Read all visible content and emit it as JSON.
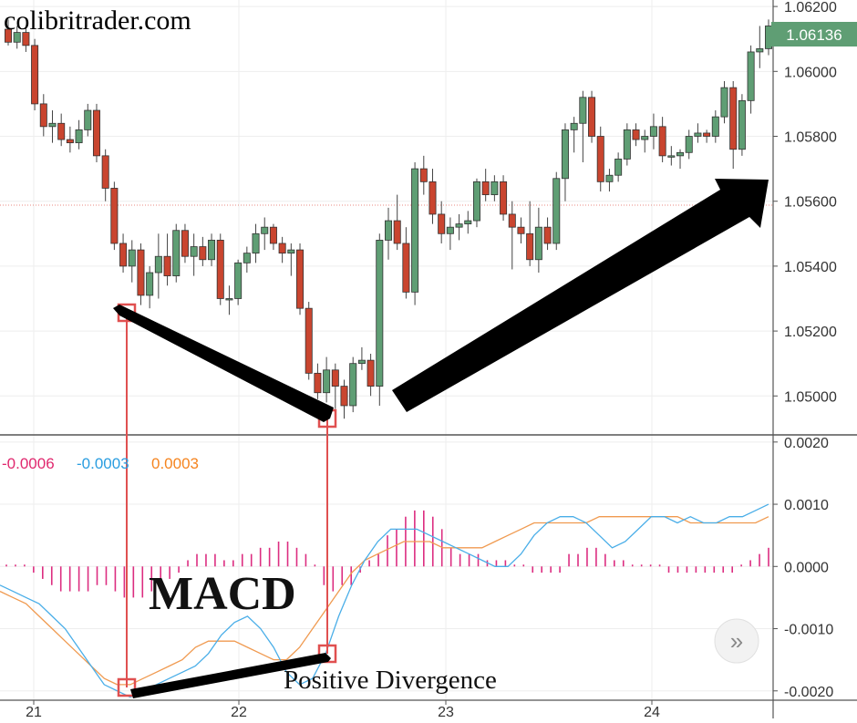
{
  "watermark": "colibritrader.com",
  "price_label": "1.06136",
  "macd_title": "MACD",
  "divergence_text": "Positive Divergence",
  "legend": [
    {
      "text": "-0.0006",
      "color": "#e0286e"
    },
    {
      "text": "-0.0003",
      "color": "#2a9de0"
    },
    {
      "text": "0.0003",
      "color": "#f5841f"
    }
  ],
  "scroll_button_label": "»",
  "colors": {
    "up": "#5f9e74",
    "down": "#c9452f",
    "hist": "#dc2d80",
    "macd_line": "#4aaee8",
    "signal_line": "#f09a50",
    "marker": "#e05050",
    "arrow": "#000000",
    "price_badge": "#5f9e74"
  },
  "chart_data": [
    {
      "type": "candlestick",
      "title": "",
      "x_ticks": [
        "21",
        "22",
        "23",
        "24"
      ],
      "y_ticks": [
        "1.05000",
        "1.05200",
        "1.05400",
        "1.05600",
        "1.05800",
        "1.06000",
        "1.06200"
      ],
      "ylim": [
        1.0488,
        1.0622
      ],
      "last_price": 1.06136,
      "ohlc": [
        [
          1.0613,
          1.0616,
          1.0608,
          1.0609
        ],
        [
          1.0609,
          1.0614,
          1.0607,
          1.0612
        ],
        [
          1.0612,
          1.0614,
          1.0606,
          1.0608
        ],
        [
          1.0608,
          1.061,
          1.0588,
          1.059
        ],
        [
          1.059,
          1.0593,
          1.058,
          1.0583
        ],
        [
          1.0583,
          1.0588,
          1.0578,
          1.0584
        ],
        [
          1.0584,
          1.0587,
          1.0577,
          1.0579
        ],
        [
          1.0579,
          1.0583,
          1.0575,
          1.0578
        ],
        [
          1.0578,
          1.0585,
          1.0576,
          1.0582
        ],
        [
          1.0582,
          1.059,
          1.058,
          1.0588
        ],
        [
          1.0588,
          1.059,
          1.0572,
          1.0574
        ],
        [
          1.0574,
          1.0576,
          1.056,
          1.0564
        ],
        [
          1.0564,
          1.0566,
          1.0545,
          1.0547
        ],
        [
          1.0547,
          1.055,
          1.0538,
          1.054
        ],
        [
          1.054,
          1.0548,
          1.0535,
          1.0545
        ],
        [
          1.0545,
          1.0547,
          1.0528,
          1.0531
        ],
        [
          1.0531,
          1.054,
          1.0527,
          1.0538
        ],
        [
          1.0538,
          1.055,
          1.053,
          1.0543
        ],
        [
          1.0543,
          1.055,
          1.0534,
          1.0537
        ],
        [
          1.0537,
          1.0553,
          1.0535,
          1.0551
        ],
        [
          1.0551,
          1.0553,
          1.0541,
          1.0543
        ],
        [
          1.0543,
          1.055,
          1.0537,
          1.0546
        ],
        [
          1.0546,
          1.0549,
          1.054,
          1.0542
        ],
        [
          1.0542,
          1.055,
          1.054,
          1.0548
        ],
        [
          1.0548,
          1.055,
          1.0528,
          1.053
        ],
        [
          1.053,
          1.0534,
          1.0525,
          1.053
        ],
        [
          1.053,
          1.0542,
          1.0528,
          1.0541
        ],
        [
          1.0541,
          1.0546,
          1.0538,
          1.0544
        ],
        [
          1.0544,
          1.0553,
          1.0541,
          1.055
        ],
        [
          1.055,
          1.0555,
          1.0545,
          1.0552
        ],
        [
          1.0552,
          1.0553,
          1.0545,
          1.0547
        ],
        [
          1.0547,
          1.0549,
          1.0541,
          1.0544
        ],
        [
          1.0544,
          1.0547,
          1.0537,
          1.0545
        ],
        [
          1.0545,
          1.0547,
          1.0525,
          1.0527
        ],
        [
          1.0527,
          1.0529,
          1.0505,
          1.0507
        ],
        [
          1.0507,
          1.051,
          1.0499,
          1.0501
        ],
        [
          1.0501,
          1.0512,
          1.0498,
          1.0508
        ],
        [
          1.0508,
          1.051,
          1.0496,
          1.0503
        ],
        [
          1.0503,
          1.0505,
          1.0493,
          1.0497
        ],
        [
          1.0497,
          1.0512,
          1.0495,
          1.051
        ],
        [
          1.051,
          1.0515,
          1.0508,
          1.0511
        ],
        [
          1.0511,
          1.0513,
          1.05,
          1.0503
        ],
        [
          1.0503,
          1.055,
          1.0497,
          1.0548
        ],
        [
          1.0548,
          1.0558,
          1.0542,
          1.0554
        ],
        [
          1.0554,
          1.0562,
          1.0545,
          1.0547
        ],
        [
          1.0547,
          1.0552,
          1.053,
          1.0532
        ],
        [
          1.0532,
          1.0572,
          1.0528,
          1.057
        ],
        [
          1.057,
          1.0574,
          1.0562,
          1.0566
        ],
        [
          1.0566,
          1.057,
          1.0553,
          1.0556
        ],
        [
          1.0556,
          1.056,
          1.0547,
          1.055
        ],
        [
          1.055,
          1.0555,
          1.0545,
          1.0552
        ],
        [
          1.0552,
          1.0556,
          1.0548,
          1.0553
        ],
        [
          1.0553,
          1.0557,
          1.055,
          1.0554
        ],
        [
          1.0554,
          1.0567,
          1.0552,
          1.0566
        ],
        [
          1.0566,
          1.057,
          1.056,
          1.0562
        ],
        [
          1.0562,
          1.0568,
          1.056,
          1.0566
        ],
        [
          1.0566,
          1.0568,
          1.0554,
          1.0556
        ],
        [
          1.0556,
          1.056,
          1.0539,
          1.0552
        ],
        [
          1.0552,
          1.0555,
          1.0547,
          1.055
        ],
        [
          1.055,
          1.056,
          1.054,
          1.0542
        ],
        [
          1.0542,
          1.0558,
          1.0538,
          1.0552
        ],
        [
          1.0552,
          1.0555,
          1.0545,
          1.0547
        ],
        [
          1.0547,
          1.0569,
          1.0545,
          1.0567
        ],
        [
          1.0567,
          1.0584,
          1.056,
          1.0582
        ],
        [
          1.0582,
          1.0586,
          1.0575,
          1.0584
        ],
        [
          1.0584,
          1.0594,
          1.0572,
          1.0592
        ],
        [
          1.0592,
          1.0594,
          1.0578,
          1.058
        ],
        [
          1.058,
          1.0583,
          1.0563,
          1.0566
        ],
        [
          1.0566,
          1.057,
          1.0563,
          1.0568
        ],
        [
          1.0568,
          1.0575,
          1.0566,
          1.0573
        ],
        [
          1.0573,
          1.0584,
          1.0571,
          1.0582
        ],
        [
          1.0582,
          1.0584,
          1.0577,
          1.0579
        ],
        [
          1.0579,
          1.0582,
          1.0575,
          1.058
        ],
        [
          1.058,
          1.0587,
          1.0576,
          1.0583
        ],
        [
          1.0583,
          1.0586,
          1.0572,
          1.0574
        ],
        [
          1.0574,
          1.0577,
          1.0571,
          1.0574
        ],
        [
          1.0574,
          1.0576,
          1.057,
          1.0575
        ],
        [
          1.0575,
          1.0582,
          1.0573,
          1.058
        ],
        [
          1.058,
          1.0584,
          1.0578,
          1.0581
        ],
        [
          1.0581,
          1.0582,
          1.0578,
          1.058
        ],
        [
          1.058,
          1.0588,
          1.0578,
          1.0586
        ],
        [
          1.0586,
          1.0597,
          1.0584,
          1.0595
        ],
        [
          1.0595,
          1.0597,
          1.057,
          1.0576
        ],
        [
          1.0576,
          1.0593,
          1.0574,
          1.0591
        ],
        [
          1.0591,
          1.0608,
          1.0587,
          1.0606
        ],
        [
          1.0606,
          1.0614,
          1.0601,
          1.0607
        ],
        [
          1.0607,
          1.0616,
          1.0605,
          1.0614
        ]
      ]
    },
    {
      "type": "macd",
      "title": "MACD",
      "y_ticks": [
        "0.0020",
        "0.0010",
        "0.0000",
        "-0.0010",
        "-0.0020"
      ],
      "ylim": [
        -0.00215,
        0.0021
      ],
      "histogram": [
        0,
        0.0,
        0,
        -0.0001,
        -0.0002,
        -0.0003,
        -0.0004,
        -0.0004,
        -0.0004,
        -0.0004,
        -0.0003,
        -0.0003,
        -0.0004,
        -0.0005,
        -0.0005,
        -0.0005,
        -0.0004,
        -0.0003,
        -0.0002,
        -0.0001,
        0.0001,
        0.0002,
        0.0002,
        0.0002,
        0.0001,
        0.0001,
        0.0002,
        0.0002,
        0.0003,
        0.0003,
        0.0004,
        0.0004,
        0.0003,
        0.0002,
        0,
        -0.0003,
        -0.0004,
        -0.0003,
        -0.0003,
        -0.0001,
        0.0001,
        0.0002,
        0.0005,
        0.0006,
        0.0008,
        0.0009,
        0.0009,
        0.0008,
        0.0006,
        0.0003,
        0.0002,
        0.0002,
        0.0002,
        0.0001,
        0.0001,
        0.0001,
        0,
        0,
        -0.0001,
        -0.0001,
        -0.0001,
        -0.0001,
        0.0002,
        0.0002,
        0.0003,
        0.0003,
        0.0002,
        0.0001,
        0.0001,
        0,
        0,
        0,
        0,
        -0.0001,
        -0.0001,
        -0.0001,
        -0.0001,
        -0.0001,
        -0.0001,
        -0.0001,
        -0.0001,
        0,
        0.0001,
        0.0002,
        0.0003
      ],
      "macd": [
        -0.0003,
        -0.0004,
        -0.0005,
        -0.0006,
        -0.0008,
        -0.001,
        -0.0013,
        -0.0016,
        -0.0019,
        -0.002,
        -0.0021,
        -0.002,
        -0.0019,
        -0.0018,
        -0.0017,
        -0.0016,
        -0.0014,
        -0.0011,
        -0.0009,
        -0.0008,
        -0.001,
        -0.0013,
        -0.0017,
        -0.0019,
        -0.0018,
        -0.0014,
        -0.0008,
        -0.0003,
        0.0001,
        0.0004,
        0.0006,
        0.0006,
        0.0006,
        0.0005,
        0.0004,
        0.0003,
        0.0002,
        0.0001,
        0,
        0,
        0.0002,
        0.0005,
        0.0007,
        0.0008,
        0.0008,
        0.0007,
        0.0005,
        0.0003,
        0.0004,
        0.0006,
        0.0008,
        0.0008,
        0.0007,
        0.0008,
        0.0007,
        0.0007,
        0.0008,
        0.0008,
        0.0009,
        0.001
      ],
      "signal": [
        -0.0004,
        -0.0005,
        -0.0006,
        -0.0008,
        -0.001,
        -0.0012,
        -0.0014,
        -0.0016,
        -0.0018,
        -0.0019,
        -0.0019,
        -0.0018,
        -0.0017,
        -0.0016,
        -0.0015,
        -0.0013,
        -0.0012,
        -0.0012,
        -0.0012,
        -0.0013,
        -0.0014,
        -0.0015,
        -0.0015,
        -0.0013,
        -0.001,
        -0.0007,
        -0.0004,
        -0.0001,
        0.0001,
        0.0002,
        0.0003,
        0.0004,
        0.0004,
        0.0004,
        0.0003,
        0.0003,
        0.0003,
        0.0003,
        0.0004,
        0.0005,
        0.0006,
        0.0007,
        0.0007,
        0.0007,
        0.0007,
        0.0007,
        0.0008,
        0.0008,
        0.0008,
        0.0008,
        0.0008,
        0.0008,
        0.0008,
        0.0007,
        0.0007,
        0.0007,
        0.0007,
        0.0007,
        0.0007,
        0.0008
      ]
    }
  ]
}
